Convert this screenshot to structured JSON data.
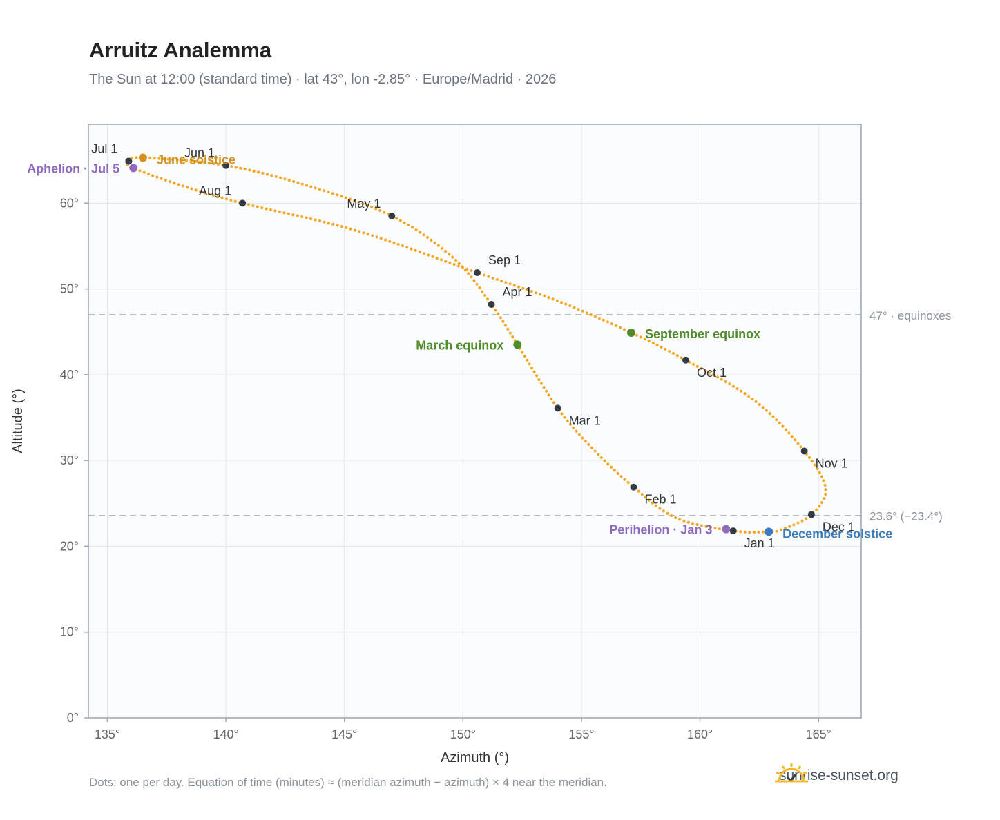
{
  "title": "Arruitz Analemma",
  "subtitle": "The Sun at 12:00 (standard time) · lat 43°, lon -2.85° · Europe/Madrid · 2026",
  "footnote": "Dots: one per day. Equation of time (minutes) ≈ (meridian azimuth − azimuth) × 4 near the meridian.",
  "brand": {
    "text": "sunrise-sunset.org",
    "icon": "sun-logo-icon",
    "color": "#f5b82e"
  },
  "colors": {
    "curve": "#f5a623",
    "month_dot": "#333a45",
    "june": "#d4901a",
    "december": "#3a7abf",
    "equinox": "#4f8a2b",
    "apsis": "#8e6bbf",
    "ref_line": "#b0b8c0",
    "plot_bg": "#fafcfd",
    "frame": "#9aa4b0"
  },
  "chart_data": {
    "type": "scatter",
    "xlabel": "Azimuth (°)",
    "ylabel": "Altitude (°)",
    "xlim": [
      134.2,
      166.8
    ],
    "ylim": [
      0,
      69.2
    ],
    "xticks": [
      135,
      140,
      145,
      150,
      155,
      160,
      165
    ],
    "xtick_labels": [
      "135°",
      "140°",
      "145°",
      "150°",
      "155°",
      "160°",
      "165°"
    ],
    "yticks": [
      0,
      10,
      20,
      30,
      40,
      50,
      60
    ],
    "ytick_labels": [
      "0°",
      "10°",
      "20°",
      "30°",
      "40°",
      "50°",
      "60°"
    ],
    "grid": true,
    "analemma_path": [
      [
        161.4,
        21.8
      ],
      [
        159.0,
        23.3
      ],
      [
        157.2,
        26.9
      ],
      [
        155.5,
        31.3
      ],
      [
        154.0,
        36.1
      ],
      [
        152.3,
        43.5
      ],
      [
        151.2,
        48.2
      ],
      [
        149.6,
        53.6
      ],
      [
        147.0,
        58.5
      ],
      [
        143.5,
        62.0
      ],
      [
        140.0,
        64.4
      ],
      [
        136.5,
        65.3
      ],
      [
        135.9,
        64.9
      ],
      [
        136.1,
        64.1
      ],
      [
        138.2,
        62.0
      ],
      [
        140.7,
        60.0
      ],
      [
        145.5,
        56.8
      ],
      [
        150.6,
        51.9
      ],
      [
        154.0,
        48.6
      ],
      [
        157.1,
        44.9
      ],
      [
        159.4,
        41.7
      ],
      [
        162.3,
        37.0
      ],
      [
        164.4,
        31.1
      ],
      [
        165.3,
        26.7
      ],
      [
        164.7,
        23.7
      ],
      [
        163.5,
        22.0
      ],
      [
        162.9,
        21.7
      ],
      [
        161.4,
        21.8
      ]
    ],
    "months": [
      {
        "label": "Jan 1",
        "az": 161.4,
        "alt": 21.8
      },
      {
        "label": "Feb 1",
        "az": 157.2,
        "alt": 26.9
      },
      {
        "label": "Mar 1",
        "az": 154.0,
        "alt": 36.1
      },
      {
        "label": "Apr 1",
        "az": 151.2,
        "alt": 48.2
      },
      {
        "label": "May 1",
        "az": 147.0,
        "alt": 58.5
      },
      {
        "label": "Jun 1",
        "az": 140.0,
        "alt": 64.4
      },
      {
        "label": "Jul 1",
        "az": 135.9,
        "alt": 64.9
      },
      {
        "label": "Aug 1",
        "az": 140.7,
        "alt": 60.0
      },
      {
        "label": "Sep 1",
        "az": 150.6,
        "alt": 51.9
      },
      {
        "label": "Oct 1",
        "az": 159.4,
        "alt": 41.7
      },
      {
        "label": "Nov 1",
        "az": 164.4,
        "alt": 31.1
      },
      {
        "label": "Dec 1",
        "az": 164.7,
        "alt": 23.7
      }
    ],
    "events": [
      {
        "label": "June solstice",
        "az": 136.5,
        "alt": 65.3,
        "color": "#d4901a"
      },
      {
        "label": "December solstice",
        "az": 162.9,
        "alt": 21.7,
        "color": "#3a7abf"
      },
      {
        "label": "March equinox",
        "az": 152.3,
        "alt": 43.5,
        "color": "#4f8a2b"
      },
      {
        "label": "September equinox",
        "az": 157.1,
        "alt": 44.9,
        "color": "#4f8a2b"
      },
      {
        "label": "Aphelion · Jul 5",
        "az": 136.1,
        "alt": 64.1,
        "color": "#8e6bbf"
      },
      {
        "label": "Perihelion · Jan 3",
        "az": 161.1,
        "alt": 22.0,
        "color": "#8e6bbf"
      }
    ],
    "reference_lines": [
      {
        "alt": 47.0,
        "label": "47° · equinoxes"
      },
      {
        "alt": 23.6,
        "label": "23.6° (−23.4°)"
      }
    ]
  }
}
